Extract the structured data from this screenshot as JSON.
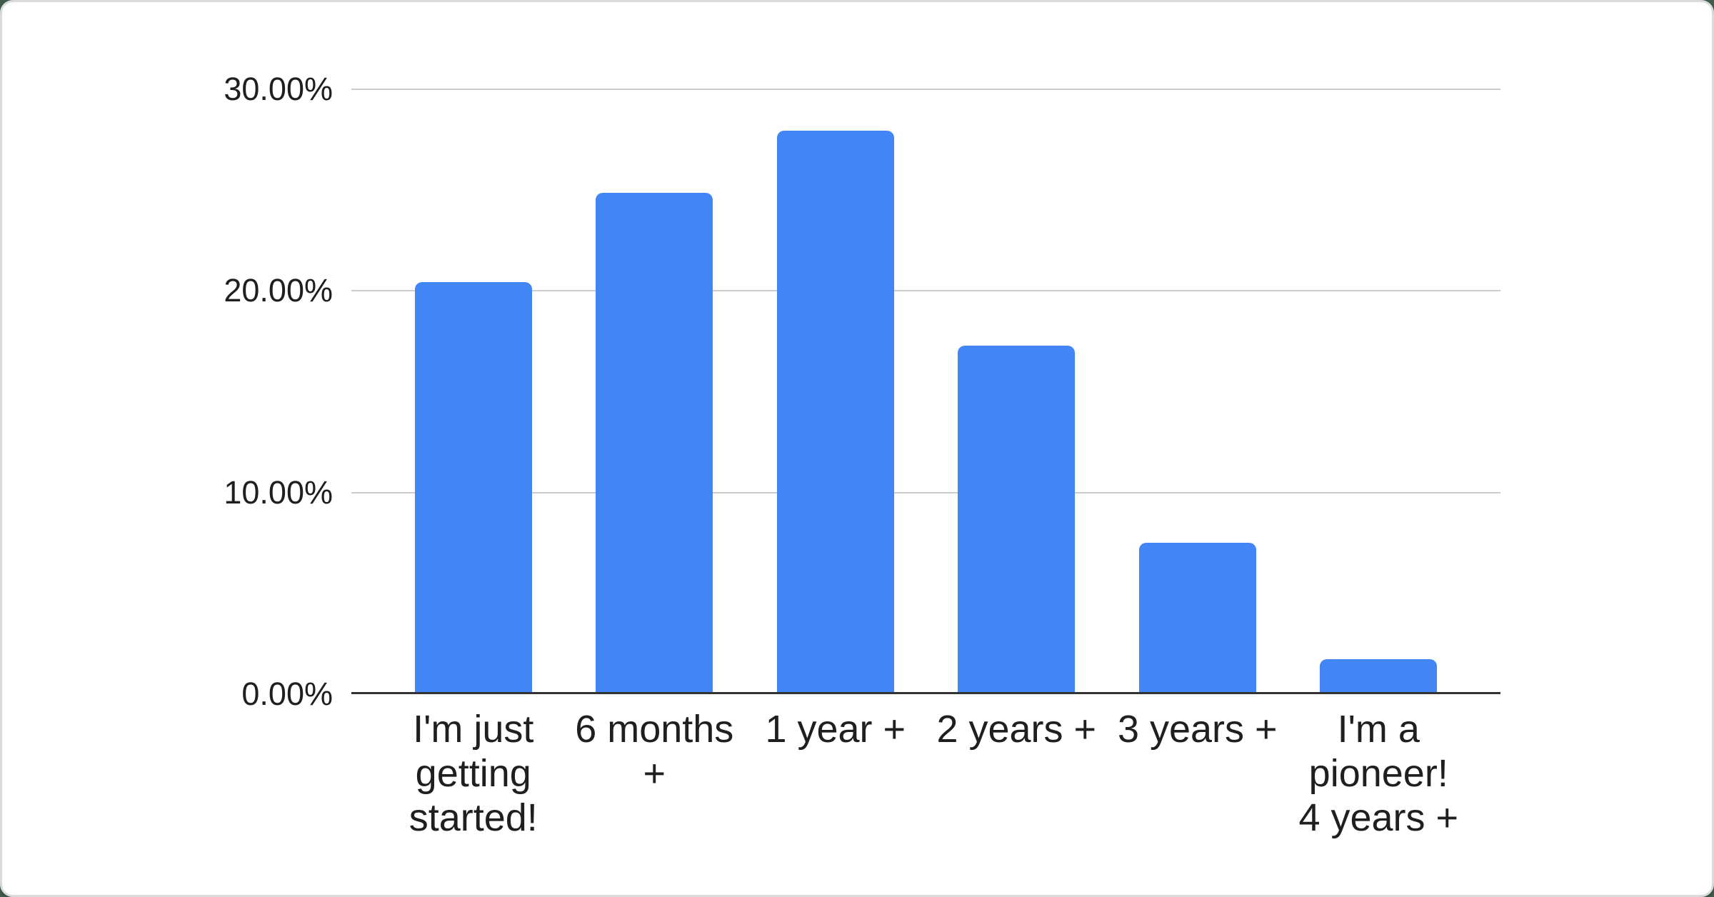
{
  "page": {
    "background_color": "#415e4d",
    "card_background_color": "#ffffff",
    "card_border_color": "#d8dbd9"
  },
  "chart_data": {
    "type": "bar",
    "title": "",
    "categories": [
      "I'm just getting started!",
      "6 months +",
      "1 year +",
      "2 years +",
      "3 years +",
      "I'm a pioneer! 4 years +"
    ],
    "category_lines": [
      [
        "I'm just",
        "getting",
        "started!"
      ],
      [
        "6 months",
        "+"
      ],
      [
        "1 year +"
      ],
      [
        "2 years +"
      ],
      [
        "3 years +"
      ],
      [
        "I'm a",
        "pioneer!",
        "4 years +"
      ]
    ],
    "values": [
      20.45,
      24.85,
      27.95,
      17.3,
      7.5,
      1.75
    ],
    "unit": "%",
    "xlabel": "",
    "ylabel": "",
    "ylim": [
      0,
      30
    ],
    "yticks": [
      {
        "label": "30.00%",
        "value": 30
      },
      {
        "label": "20.00%",
        "value": 20
      },
      {
        "label": "10.00%",
        "value": 10
      },
      {
        "label": "0.00%",
        "value": 0
      }
    ],
    "grid": true,
    "legend_position": "none",
    "bar_color": "#4285F4",
    "gridline_color": "#cccccc",
    "axis_line_color": "#333333",
    "label_color": "#1f1f1f"
  }
}
